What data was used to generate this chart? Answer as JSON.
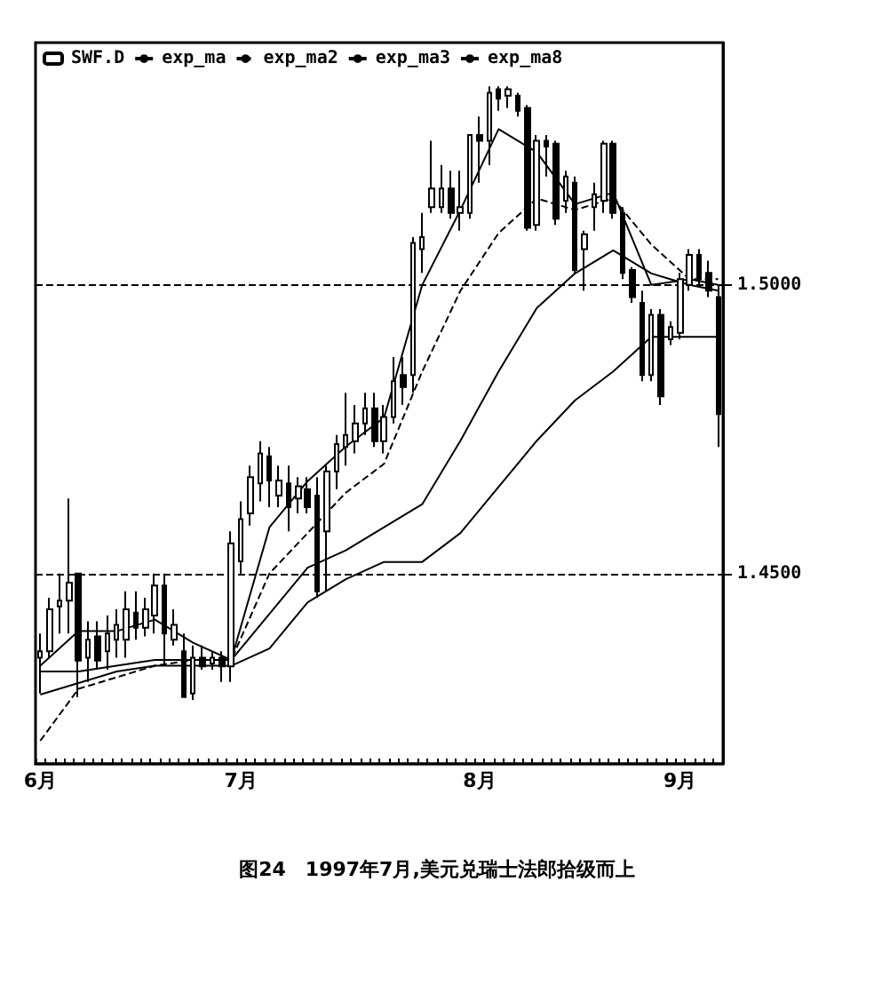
{
  "chart_data": {
    "type": "candlestick",
    "categories": [
      "6月",
      null,
      null,
      null,
      null,
      null,
      null,
      null,
      null,
      null,
      null,
      null,
      null,
      null,
      null,
      null,
      null,
      null,
      null,
      null,
      null,
      "7月",
      null,
      null,
      null,
      null,
      null,
      null,
      null,
      null,
      null,
      null,
      null,
      null,
      null,
      null,
      null,
      null,
      null,
      null,
      null,
      null,
      null,
      null,
      null,
      null,
      "8月",
      null,
      null,
      null,
      null,
      null,
      null,
      null,
      null,
      null,
      null,
      null,
      null,
      null,
      null,
      null,
      null,
      null,
      null,
      null,
      null,
      "9月",
      null,
      null,
      null,
      null
    ],
    "series": [
      {
        "name": "SWF.D",
        "color": "#000000",
        "ohlc": [
          [
            1.4354,
            1.4396,
            1.4292,
            1.4365
          ],
          [
            1.4365,
            1.4458,
            1.4354,
            1.4438
          ],
          [
            1.4443,
            1.45,
            1.4396,
            1.4453
          ],
          [
            1.4453,
            1.463,
            1.4396,
            1.4484
          ],
          [
            1.45,
            1.45,
            1.4286,
            1.4349
          ],
          [
            1.4354,
            1.4417,
            1.4312,
            1.4385
          ],
          [
            1.4391,
            1.4417,
            1.4333,
            1.4349
          ],
          [
            1.4365,
            1.4427,
            1.4333,
            1.4396
          ],
          [
            1.4385,
            1.4438,
            1.4354,
            1.4411
          ],
          [
            1.4385,
            1.4469,
            1.4354,
            1.4438
          ],
          [
            1.4432,
            1.4469,
            1.4385,
            1.4406
          ],
          [
            1.4406,
            1.4458,
            1.4391,
            1.4438
          ],
          [
            1.4427,
            1.45,
            1.4396,
            1.4479
          ],
          [
            1.4479,
            1.45,
            1.4344,
            1.4396
          ],
          [
            1.4385,
            1.4438,
            1.4375,
            1.4411
          ],
          [
            1.4365,
            1.4396,
            1.4286,
            1.4286
          ],
          [
            1.4292,
            1.4375,
            1.4281,
            1.4354
          ],
          [
            1.4354,
            1.4375,
            1.4333,
            1.4339
          ],
          [
            1.4344,
            1.4365,
            1.4333,
            1.4354
          ],
          [
            1.4354,
            1.4365,
            1.4312,
            1.4339
          ],
          [
            1.4339,
            1.4573,
            1.4312,
            1.4552
          ],
          [
            1.4521,
            1.4625,
            1.45,
            1.4594
          ],
          [
            1.4604,
            1.4687,
            1.4583,
            1.4667
          ],
          [
            1.4656,
            1.4729,
            1.4625,
            1.4708
          ],
          [
            1.4703,
            1.4719,
            1.4615,
            1.4661
          ],
          [
            1.4635,
            1.4687,
            1.4615,
            1.4661
          ],
          [
            1.4656,
            1.4687,
            1.4573,
            1.4615
          ],
          [
            1.463,
            1.4667,
            1.4604,
            1.4651
          ],
          [
            1.4646,
            1.4667,
            1.4604,
            1.4615
          ],
          [
            1.4635,
            1.4667,
            1.4458,
            1.4469
          ],
          [
            1.4573,
            1.4687,
            1.4469,
            1.4677
          ],
          [
            1.4677,
            1.474,
            1.4646,
            1.4724
          ],
          [
            1.4719,
            1.4813,
            1.4687,
            1.474
          ],
          [
            1.4729,
            1.4792,
            1.4708,
            1.476
          ],
          [
            1.476,
            1.4813,
            1.474,
            1.4786
          ],
          [
            1.4786,
            1.4813,
            1.4719,
            1.4729
          ],
          [
            1.4729,
            1.4792,
            1.4708,
            1.4771
          ],
          [
            1.4771,
            1.4875,
            1.476,
            1.4833
          ],
          [
            1.4844,
            1.4875,
            1.4792,
            1.4823
          ],
          [
            1.4844,
            1.5083,
            1.4813,
            1.5073
          ],
          [
            1.5062,
            1.5125,
            1.5021,
            1.5083
          ],
          [
            1.5135,
            1.525,
            1.5125,
            1.5167
          ],
          [
            1.5135,
            1.5208,
            1.5125,
            1.5167
          ],
          [
            1.5167,
            1.5198,
            1.5115,
            1.5125
          ],
          [
            1.5125,
            1.5198,
            1.5094,
            1.5135
          ],
          [
            1.5125,
            1.526,
            1.5115,
            1.526
          ],
          [
            1.526,
            1.5292,
            1.5177,
            1.525
          ],
          [
            1.525,
            1.5344,
            1.5208,
            1.5333
          ],
          [
            1.5339,
            1.5344,
            1.5302,
            1.5323
          ],
          [
            1.5328,
            1.5344,
            1.5307,
            1.5339
          ],
          [
            1.5328,
            1.5333,
            1.5292,
            1.5302
          ],
          [
            1.5307,
            1.5312,
            1.5094,
            1.5099
          ],
          [
            1.5104,
            1.526,
            1.5094,
            1.525
          ],
          [
            1.525,
            1.526,
            1.5188,
            1.524
          ],
          [
            1.5245,
            1.525,
            1.5104,
            1.5115
          ],
          [
            1.5146,
            1.5198,
            1.5125,
            1.5188
          ],
          [
            1.5177,
            1.5188,
            1.5021,
            1.5026
          ],
          [
            1.5062,
            1.5094,
            1.499,
            1.5088
          ],
          [
            1.5135,
            1.5177,
            1.5094,
            1.5157
          ],
          [
            1.5146,
            1.525,
            1.5125,
            1.5245
          ],
          [
            1.5245,
            1.525,
            1.5115,
            1.5125
          ],
          [
            1.5125,
            1.5135,
            1.501,
            1.5021
          ],
          [
            1.5026,
            1.5031,
            1.4969,
            1.4979
          ],
          [
            1.4969,
            1.499,
            1.4833,
            1.4844
          ],
          [
            1.4844,
            1.4958,
            1.4833,
            1.4948
          ],
          [
            1.4948,
            1.4958,
            1.4792,
            1.4807
          ],
          [
            1.4906,
            1.4937,
            1.4896,
            1.4927
          ],
          [
            1.4917,
            1.5021,
            1.4906,
            1.501
          ],
          [
            1.5,
            1.5062,
            1.499,
            1.5052
          ],
          [
            1.5052,
            1.5062,
            1.5,
            1.501
          ],
          [
            1.5021,
            1.5042,
            1.4979,
            1.499
          ],
          [
            1.4979,
            1.5,
            1.4719,
            1.4776
          ]
        ]
      },
      {
        "name": "exp_ma",
        "type": "line",
        "color": "#000000",
        "line_style": "solid",
        "values": [
          1.434,
          null,
          null,
          null,
          1.44,
          null,
          null,
          null,
          1.44,
          null,
          null,
          null,
          1.442,
          null,
          null,
          null,
          1.438,
          null,
          null,
          null,
          1.435,
          null,
          null,
          null,
          1.458,
          null,
          null,
          null,
          1.466,
          null,
          null,
          null,
          1.472,
          null,
          null,
          null,
          1.477,
          null,
          null,
          null,
          1.5,
          null,
          null,
          null,
          1.513,
          null,
          null,
          null,
          1.527,
          null,
          null,
          null,
          1.523,
          null,
          null,
          null,
          1.514,
          null,
          null,
          null,
          1.516,
          null,
          null,
          null,
          1.5,
          null,
          null,
          null,
          1.501,
          null,
          null,
          1.5
        ]
      },
      {
        "name": "exp_ma2",
        "type": "line",
        "color": "#000000",
        "line_style": "dashed",
        "values": [
          1.421,
          null,
          null,
          null,
          1.43,
          null,
          null,
          null,
          1.432,
          null,
          null,
          null,
          1.434,
          null,
          null,
          null,
          1.435,
          null,
          null,
          null,
          1.435,
          null,
          null,
          null,
          1.45,
          null,
          null,
          null,
          1.457,
          null,
          null,
          null,
          1.464,
          null,
          null,
          null,
          1.469,
          null,
          null,
          null,
          1.485,
          null,
          null,
          null,
          1.499,
          null,
          null,
          null,
          1.509,
          null,
          null,
          null,
          1.515,
          null,
          null,
          null,
          1.513,
          null,
          null,
          null,
          1.515,
          null,
          null,
          null,
          1.507,
          null,
          null,
          null,
          1.501,
          null,
          null,
          1.501
        ]
      },
      {
        "name": "exp_ma3",
        "type": "line",
        "color": "#000000",
        "line_style": "solid",
        "values": [
          1.433,
          null,
          null,
          null,
          1.433,
          null,
          null,
          null,
          1.434,
          null,
          null,
          null,
          1.435,
          null,
          null,
          null,
          1.435,
          null,
          null,
          null,
          1.435,
          null,
          null,
          null,
          1.443,
          null,
          null,
          null,
          1.451,
          null,
          null,
          null,
          1.454,
          null,
          null,
          null,
          1.458,
          null,
          null,
          null,
          1.462,
          null,
          null,
          null,
          1.473,
          null,
          null,
          null,
          1.485,
          null,
          null,
          null,
          1.496,
          null,
          null,
          null,
          1.502,
          null,
          null,
          null,
          1.506,
          null,
          null,
          null,
          1.502,
          null,
          null,
          null,
          1.5,
          null,
          null,
          1.499
        ]
      },
      {
        "name": "exp_ma8",
        "type": "line",
        "color": "#000000",
        "line_style": "solid",
        "values": [
          1.429,
          null,
          null,
          null,
          1.431,
          null,
          null,
          null,
          1.433,
          null,
          null,
          null,
          1.434,
          null,
          null,
          null,
          1.434,
          null,
          null,
          null,
          1.434,
          null,
          null,
          null,
          1.437,
          null,
          null,
          null,
          1.445,
          null,
          null,
          null,
          1.449,
          null,
          null,
          null,
          1.452,
          null,
          null,
          null,
          1.452,
          null,
          null,
          null,
          1.457,
          null,
          null,
          null,
          1.465,
          null,
          null,
          null,
          1.473,
          null,
          null,
          null,
          1.48,
          null,
          null,
          null,
          1.485,
          null,
          null,
          null,
          1.491,
          null,
          null,
          null,
          1.491,
          null,
          null,
          1.491
        ]
      }
    ],
    "ylim": [
      1.417,
      1.542
    ],
    "yticks": [
      {
        "value": 1.45,
        "label": "1.4500"
      },
      {
        "value": 1.5,
        "label": "1.5000"
      }
    ],
    "grid": "y",
    "legend": "top left",
    "marker": "none",
    "annotations": [
      "图24　1997年7月,美元兑瑞士法郎拾级而上"
    ]
  }
}
